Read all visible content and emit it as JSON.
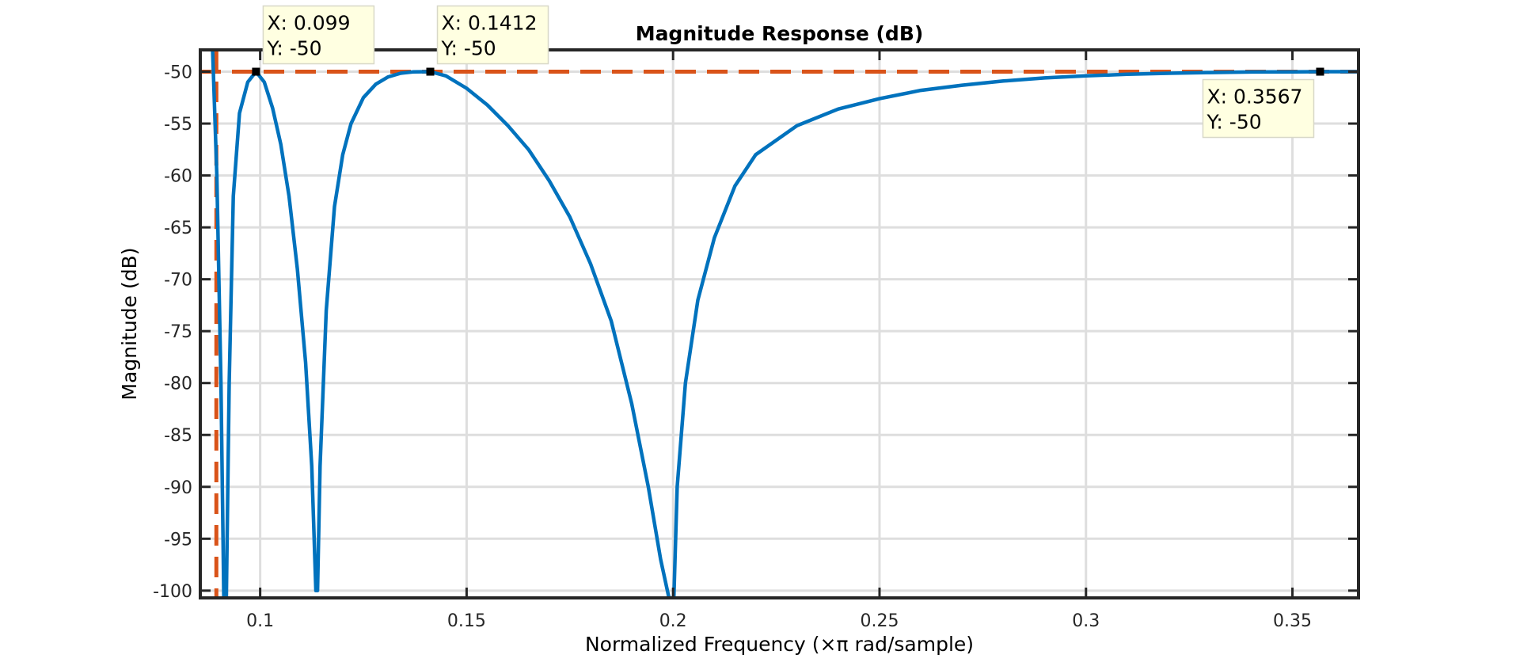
{
  "chart_data": {
    "type": "line",
    "title": "Magnitude Response (dB)",
    "xlabel": "Normalized Frequency (×π rad/sample)",
    "ylabel": "Magnitude (dB)",
    "xlim": [
      0.0855,
      0.366
    ],
    "ylim": [
      -100.7,
      -47.9
    ],
    "xticks": [
      0.1,
      0.15,
      0.2,
      0.25,
      0.3,
      0.35
    ],
    "xtick_labels": [
      "0.1",
      "0.15",
      "0.2",
      "0.25",
      "0.3",
      "0.35"
    ],
    "yticks": [
      -50,
      -55,
      -60,
      -65,
      -70,
      -75,
      -80,
      -85,
      -90,
      -95,
      -100
    ],
    "ytick_labels": [
      "-50",
      "-55",
      "-60",
      "-65",
      "-70",
      "-75",
      "-80",
      "-85",
      "-90",
      "-95",
      "-100"
    ],
    "grid": true,
    "series": [
      {
        "color": "#0072BD",
        "x": [
          0.0885,
          0.0895,
          0.0905,
          0.0912,
          0.0915,
          0.0918,
          0.0925,
          0.0935,
          0.095,
          0.097,
          0.099,
          0.101,
          0.103,
          0.105,
          0.107,
          0.109,
          0.111,
          0.1125,
          0.1135,
          0.1137,
          0.1139,
          0.1145,
          0.116,
          0.118,
          0.12,
          0.122,
          0.125,
          0.128,
          0.131,
          0.134,
          0.137,
          0.1412,
          0.145,
          0.15,
          0.155,
          0.16,
          0.165,
          0.17,
          0.175,
          0.18,
          0.185,
          0.19,
          0.194,
          0.197,
          0.199,
          0.1998,
          0.2,
          0.2002,
          0.201,
          0.203,
          0.206,
          0.21,
          0.215,
          0.22,
          0.23,
          0.24,
          0.25,
          0.26,
          0.27,
          0.28,
          0.29,
          0.3,
          0.31,
          0.32,
          0.33,
          0.34,
          0.35,
          0.3567,
          0.366
        ],
        "y": [
          -48,
          -60,
          -80,
          -100.7,
          -100.7,
          -100.7,
          -80,
          -62,
          -54,
          -51,
          -50,
          -51,
          -53.5,
          -57,
          -62,
          -69,
          -78,
          -88,
          -100,
          -100,
          -100,
          -88,
          -73,
          -63,
          -58,
          -55,
          -52.5,
          -51.2,
          -50.5,
          -50.15,
          -50.02,
          -50,
          -50.4,
          -51.6,
          -53.2,
          -55.2,
          -57.5,
          -60.5,
          -64,
          -68.5,
          -74,
          -82,
          -90,
          -97,
          -100.7,
          -100.7,
          -100.7,
          -100.7,
          -90,
          -80,
          -72,
          -66,
          -61,
          -58,
          -55.2,
          -53.6,
          -52.6,
          -51.8,
          -51.3,
          -50.9,
          -50.6,
          -50.4,
          -50.25,
          -50.15,
          -50.08,
          -50.03,
          -50.01,
          -50,
          -50
        ]
      },
      {
        "color": "#D95319",
        "style": "dashed",
        "x": [
          0.0855,
          0.366
        ],
        "y": [
          -50,
          -50
        ]
      },
      {
        "color": "#D95319",
        "style": "dashed",
        "x": [
          0.0894,
          0.0894
        ],
        "y": [
          -47.9,
          -100.7
        ]
      }
    ],
    "datatips": [
      {
        "x": 0.099,
        "y": -50,
        "x_text": "X: 0.099",
        "y_text": "Y: -50",
        "placement": "above-right"
      },
      {
        "x": 0.1412,
        "y": -50,
        "x_text": "X: 0.1412",
        "y_text": "Y: -50",
        "placement": "above-right"
      },
      {
        "x": 0.3567,
        "y": -50,
        "x_text": "X: 0.3567",
        "y_text": "Y: -50",
        "placement": "below-left"
      }
    ]
  }
}
